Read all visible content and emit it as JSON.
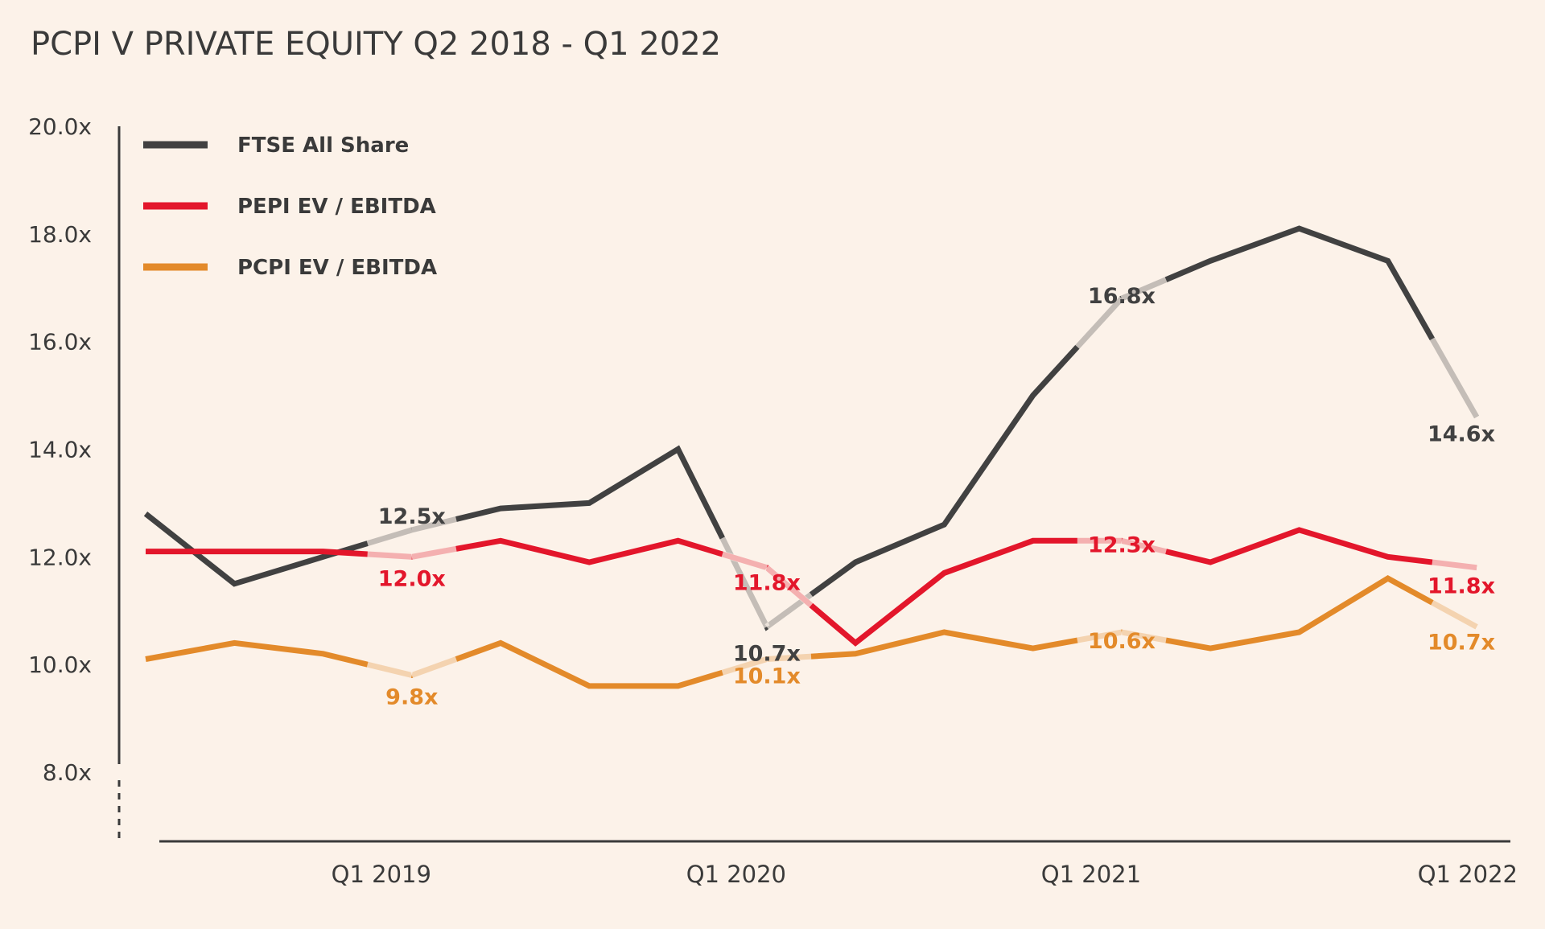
{
  "chart_data": {
    "type": "line",
    "title": "PCPI V PRIVATE EQUITY Q2 2018 - Q1 2022",
    "xlabel": "",
    "ylabel": "",
    "ylim": [
      8.0,
      20.0
    ],
    "y_ticks": [
      "20.0x",
      "18.0x",
      "16.0x",
      "14.0x",
      "12.0x",
      "10.0x",
      "8.0x"
    ],
    "y_tick_values": [
      20,
      18,
      16,
      14,
      12,
      10,
      8
    ],
    "categories": [
      "Q2 2018",
      "Q3 2018",
      "Q4 2018",
      "Q1 2019",
      "Q2 2019",
      "Q3 2019",
      "Q4 2019",
      "Q1 2020",
      "Q2 2020",
      "Q3 2020",
      "Q4 2020",
      "Q1 2021",
      "Q2 2021",
      "Q3 2021",
      "Q4 2021",
      "Q1 2022"
    ],
    "x_tick_labels": [
      {
        "label": "Q1 2019",
        "index": 3
      },
      {
        "label": "Q1 2020",
        "index": 7
      },
      {
        "label": "Q1 2021",
        "index": 11
      },
      {
        "label": "Q1 2022",
        "index": 15
      }
    ],
    "legend_position": "top-left",
    "grid": false,
    "series": [
      {
        "name": "FTSE All Share",
        "color": "#414141",
        "values": [
          12.8,
          11.5,
          12.0,
          12.5,
          12.9,
          13.0,
          14.0,
          10.7,
          11.9,
          12.6,
          15.0,
          16.8,
          17.5,
          18.1,
          17.5,
          14.6
        ],
        "labels": [
          {
            "index": 3,
            "text": "12.5x"
          },
          {
            "index": 7,
            "text": "10.7x"
          },
          {
            "index": 11,
            "text": "16.8x"
          },
          {
            "index": 15,
            "text": "14.6x"
          }
        ]
      },
      {
        "name": "PEPI EV / EBITDA",
        "color": "#e3162b",
        "values": [
          12.1,
          12.1,
          12.1,
          12.0,
          12.3,
          11.9,
          12.3,
          11.8,
          10.4,
          11.7,
          12.3,
          12.3,
          11.9,
          12.5,
          12.0,
          11.8
        ],
        "labels": [
          {
            "index": 3,
            "text": "12.0x"
          },
          {
            "index": 7,
            "text": "11.8x"
          },
          {
            "index": 11,
            "text": "12.3x"
          },
          {
            "index": 15,
            "text": "11.8x"
          }
        ]
      },
      {
        "name": "PCPI EV / EBITDA",
        "color": "#e38a2a",
        "values": [
          10.1,
          10.4,
          10.2,
          9.8,
          10.4,
          9.6,
          9.6,
          10.1,
          10.2,
          10.6,
          10.3,
          10.6,
          10.3,
          10.6,
          11.6,
          10.7
        ],
        "labels": [
          {
            "index": 3,
            "text": "9.8x"
          },
          {
            "index": 7,
            "text": "10.1x"
          },
          {
            "index": 11,
            "text": "10.6x"
          },
          {
            "index": 15,
            "text": "10.7x"
          }
        ]
      }
    ]
  }
}
